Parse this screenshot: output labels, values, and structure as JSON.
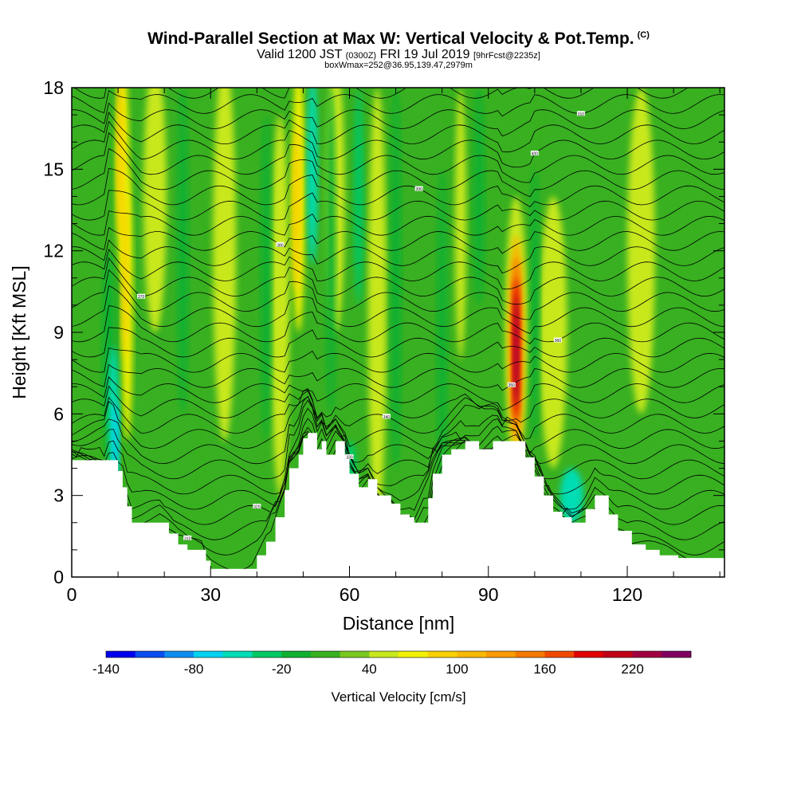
{
  "header": {
    "title": "Wind-Parallel Section at Max W: Vertical Velocity & Pot.Temp.",
    "copyright": "(C)",
    "valid_prefix": "Valid 1200 JST",
    "valid_utc": "(0300Z)",
    "valid_date": "FRI 19 Jul 2019",
    "forecast": "[9hrFcst@2235z]",
    "box_info": "boxWmax=252@36.95,139.47,2979m"
  },
  "chart_data": {
    "type": "heatmap",
    "xlabel": "Distance [nm]",
    "ylabel": "Height [Kft MSL]",
    "xlim": [
      0,
      141
    ],
    "ylim": [
      0,
      18
    ],
    "x_ticks": [
      "0",
      "30",
      "60",
      "90",
      "120"
    ],
    "y_ticks": [
      "0",
      "3",
      "6",
      "9",
      "12",
      "15",
      "18"
    ],
    "colorbar": {
      "title": "Vertical Velocity [cm/s]",
      "labels": [
        "-140",
        "-80",
        "-20",
        "40",
        "100",
        "160",
        "220"
      ],
      "levels": [
        -140,
        -120,
        -100,
        -80,
        -60,
        -40,
        -20,
        0,
        20,
        40,
        60,
        80,
        100,
        120,
        140,
        160,
        180,
        200,
        220,
        240,
        260
      ],
      "colors": [
        "#0000ee",
        "#0a4ef0",
        "#0e8ef0",
        "#00d2f0",
        "#00dcb4",
        "#00c864",
        "#10b030",
        "#38b020",
        "#78c820",
        "#c8e81e",
        "#f2f200",
        "#f8d200",
        "#f8b800",
        "#f89a00",
        "#f47800",
        "#f04800",
        "#e00000",
        "#c00018",
        "#a00040",
        "#800060"
      ]
    },
    "terrain_kft": [
      [
        0,
        4.3
      ],
      [
        9,
        4.3
      ],
      [
        10,
        3.9
      ],
      [
        11,
        3.3
      ],
      [
        12,
        2.6
      ],
      [
        13,
        2.0
      ],
      [
        19,
        2.0
      ],
      [
        21,
        1.6
      ],
      [
        23,
        1.2
      ],
      [
        25,
        1.0
      ],
      [
        28,
        1.0
      ],
      [
        29,
        0.6
      ],
      [
        30,
        0.3
      ],
      [
        38,
        0.3
      ],
      [
        40,
        0.8
      ],
      [
        42,
        1.3
      ],
      [
        44,
        2.2
      ],
      [
        46,
        3.2
      ],
      [
        47,
        4.0
      ],
      [
        49,
        4.5
      ],
      [
        50,
        5.1
      ],
      [
        51,
        5.3
      ],
      [
        53,
        4.7
      ],
      [
        54,
        5.0
      ],
      [
        55,
        4.5
      ],
      [
        57,
        5.0
      ],
      [
        59,
        4.5
      ],
      [
        60,
        3.8
      ],
      [
        62,
        3.3
      ],
      [
        64,
        3.6
      ],
      [
        66,
        3.0
      ],
      [
        69,
        2.7
      ],
      [
        71,
        2.3
      ],
      [
        73,
        2.2
      ],
      [
        74,
        2.0
      ],
      [
        77,
        2.9
      ],
      [
        78,
        3.8
      ],
      [
        80,
        4.5
      ],
      [
        82,
        4.7
      ],
      [
        85,
        5.0
      ],
      [
        88,
        4.7
      ],
      [
        91,
        5.0
      ],
      [
        96,
        5.0
      ],
      [
        98,
        4.4
      ],
      [
        100,
        3.7
      ],
      [
        102,
        3.0
      ],
      [
        104,
        2.4
      ],
      [
        106,
        2.2
      ],
      [
        108,
        2.0
      ],
      [
        111,
        2.5
      ],
      [
        113,
        3.0
      ],
      [
        116,
        2.3
      ],
      [
        118,
        1.7
      ],
      [
        121,
        1.2
      ],
      [
        124,
        1.0
      ],
      [
        127,
        0.8
      ],
      [
        131,
        0.7
      ],
      [
        141,
        0.7
      ]
    ],
    "updraft_max": {
      "x": 96,
      "y_kft": 8.4,
      "value_cms": 252
    },
    "isentrope_labels": [
      "310",
      "320",
      "330",
      "340",
      "350",
      "360",
      "370",
      "380",
      "390",
      "400"
    ]
  }
}
